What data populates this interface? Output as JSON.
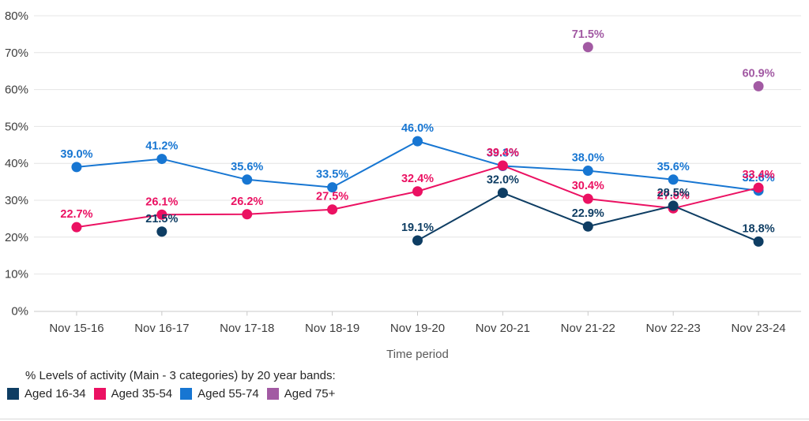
{
  "chart_data": {
    "type": "line",
    "title": "",
    "xlabel": "Time period",
    "ylabel": "",
    "ylim": [
      0,
      80
    ],
    "grid": true,
    "y_ticks": [
      "0%",
      "10%",
      "20%",
      "30%",
      "40%",
      "50%",
      "60%",
      "70%",
      "80%"
    ],
    "categories": [
      "Nov 15-16",
      "Nov 16-17",
      "Nov 17-18",
      "Nov 18-19",
      "Nov 19-20",
      "Nov 20-21",
      "Nov 21-22",
      "Nov 22-23",
      "Nov 23-24"
    ],
    "series": [
      {
        "name": "Aged 16-34",
        "color": "#0e3d63",
        "values": [
          null,
          21.5,
          null,
          null,
          19.1,
          32.0,
          22.9,
          28.5,
          18.8
        ]
      },
      {
        "name": "Aged 35-54",
        "color": "#eb1162",
        "values": [
          22.7,
          26.1,
          26.2,
          27.5,
          32.4,
          39.4,
          30.4,
          27.8,
          33.4
        ]
      },
      {
        "name": "Aged 55-74",
        "color": "#1776d2",
        "values": [
          39.0,
          41.2,
          35.6,
          33.5,
          46.0,
          39.3,
          38.0,
          35.6,
          32.6
        ]
      },
      {
        "name": "Aged 75+",
        "color": "#a25aa3",
        "values": [
          null,
          null,
          null,
          null,
          null,
          null,
          71.5,
          null,
          60.9
        ]
      }
    ],
    "draw_order": [
      "Aged 55-74",
      "Aged 35-54",
      "Aged 16-34",
      "Aged 75+"
    ],
    "label_suffix": "%",
    "legend_title": "% Levels of activity (Main - 3 categories) by 20 year bands:",
    "legend_position": "bottom-left"
  }
}
